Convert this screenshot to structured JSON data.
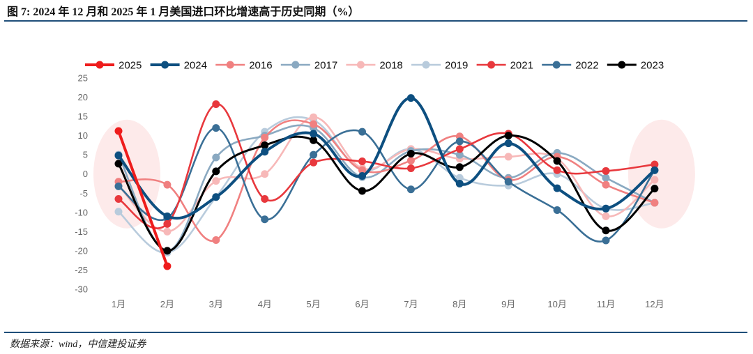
{
  "title": "图 7: 2024 年 12 月和 2025 年 1 月美国进口环比增速高于历史同期（%）",
  "source": "数据来源：wind，中信建投证券",
  "chart_data": {
    "type": "line",
    "categories": [
      "1月",
      "2月",
      "3月",
      "4月",
      "5月",
      "6月",
      "7月",
      "8月",
      "9月",
      "10月",
      "11月",
      "12月"
    ],
    "ylim": [
      -30,
      25
    ],
    "yticks": [
      25,
      20,
      15,
      10,
      5,
      0,
      -5,
      -10,
      -15,
      -20,
      -25,
      -30
    ],
    "grid": false,
    "legend_position": "top",
    "highlights": [
      "1月",
      "12月"
    ],
    "series": [
      {
        "name": "2025",
        "color": "#ee1c1c",
        "values": [
          11.2,
          -24.0,
          null,
          null,
          null,
          null,
          null,
          null,
          null,
          null,
          null,
          null
        ]
      },
      {
        "name": "2024",
        "color": "#0d4f80",
        "values": [
          4.8,
          -11.0,
          -6.0,
          5.8,
          10.5,
          -0.5,
          19.8,
          -2.5,
          8.0,
          -3.7,
          -9.0,
          1.0
        ]
      },
      {
        "name": "2016",
        "color": "#f08080",
        "values": [
          -2.0,
          -2.8,
          -17.2,
          9.5,
          13.0,
          1.0,
          3.5,
          9.8,
          -1.5,
          4.5,
          -2.8,
          -7.5
        ]
      },
      {
        "name": "2017",
        "color": "#8aa9c1",
        "values": [
          5.0,
          -20.0,
          4.3,
          10.0,
          12.0,
          -0.8,
          6.0,
          5.0,
          -1.0,
          5.5,
          -1.0,
          -7.5
        ]
      },
      {
        "name": "2018",
        "color": "#f7b8b8",
        "values": [
          -3.0,
          -15.0,
          -1.8,
          0.0,
          14.8,
          1.5,
          6.5,
          4.0,
          4.5,
          4.0,
          -11.0,
          -1.5
        ]
      },
      {
        "name": "2019",
        "color": "#b8cbdc",
        "values": [
          -9.8,
          -20.5,
          -6.0,
          11.0,
          14.0,
          1.0,
          6.5,
          -1.0,
          -3.0,
          0.0,
          -9.0,
          -7.5
        ]
      },
      {
        "name": "2021",
        "color": "#e8383d",
        "values": [
          -6.5,
          -13.0,
          18.2,
          -6.5,
          3.0,
          3.3,
          1.5,
          6.5,
          10.5,
          1.0,
          0.8,
          2.5
        ]
      },
      {
        "name": "2022",
        "color": "#3a6f96",
        "values": [
          -3.2,
          -11.5,
          12.0,
          -11.8,
          5.0,
          11.0,
          -4.0,
          8.5,
          -2.0,
          -9.4,
          -17.3,
          1.0
        ]
      },
      {
        "name": "2023",
        "color": "#000000",
        "values": [
          2.7,
          -20.0,
          0.7,
          7.5,
          8.8,
          -4.4,
          5.3,
          1.8,
          10.0,
          3.4,
          -14.7,
          -3.8
        ]
      }
    ]
  }
}
